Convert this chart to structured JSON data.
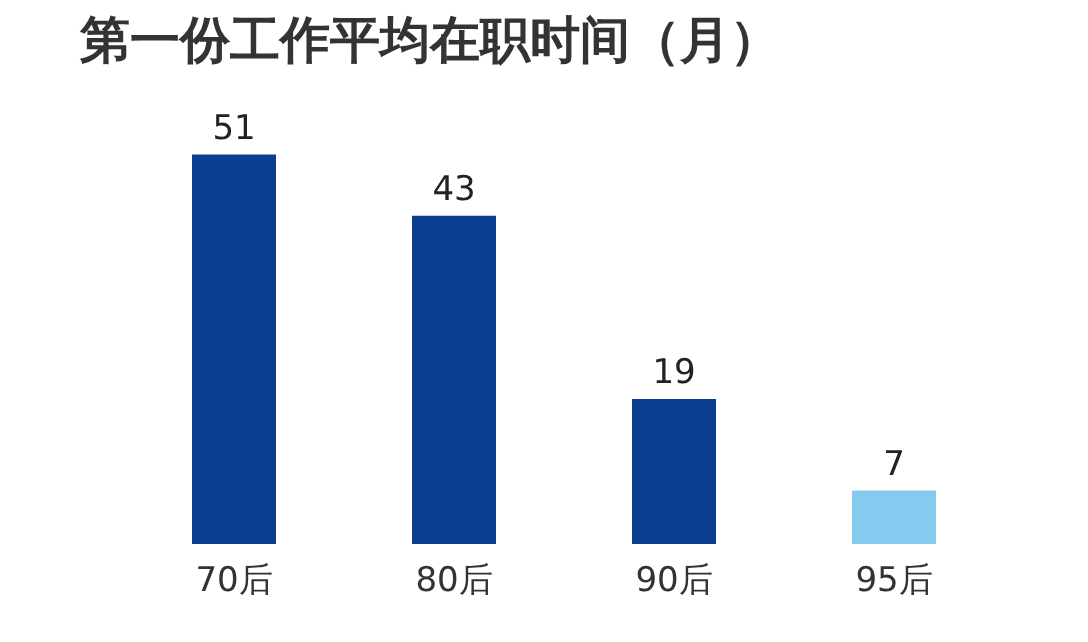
{
  "chart_data": {
    "type": "bar",
    "title": "第一份工作平均在职时间（月）",
    "categories": [
      "70后",
      "80后",
      "90后",
      "95后"
    ],
    "values": [
      51,
      43,
      19,
      7
    ],
    "colors": [
      "#0b3f8f",
      "#0b3f8f",
      "#0b3f8f",
      "#86cbef"
    ],
    "data_labels": true
  }
}
